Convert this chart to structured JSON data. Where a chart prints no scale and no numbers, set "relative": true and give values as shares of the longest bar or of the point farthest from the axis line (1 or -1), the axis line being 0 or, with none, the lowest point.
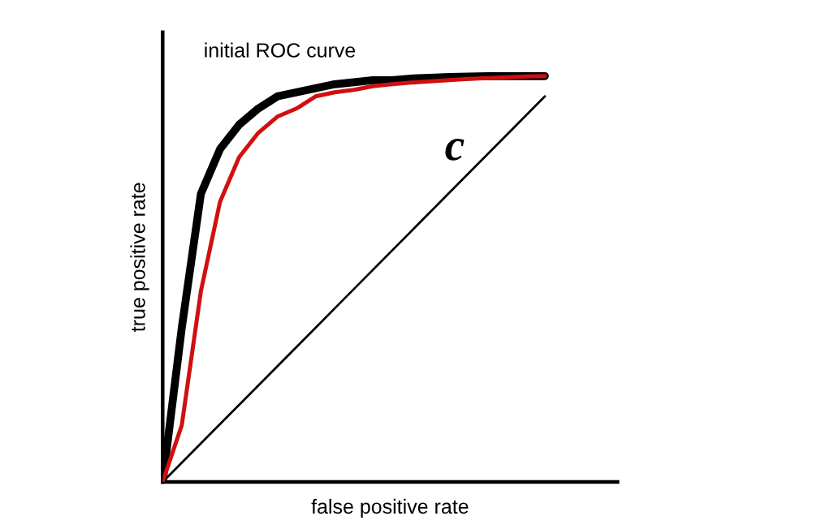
{
  "chart_data": {
    "type": "line",
    "relative": true,
    "xlabel": "false positive rate",
    "ylabel": "true positive rate",
    "marker": "none",
    "line_style": "solid",
    "categories": [
      null,
      null,
      null,
      null,
      null,
      null,
      null,
      null,
      null,
      null,
      null,
      null,
      null,
      null,
      null,
      null,
      null,
      null,
      null,
      null,
      null
    ],
    "series": [
      {
        "color": "#000000",
        "values": [
          0,
          0.38,
          0.71,
          0.82,
          0.88,
          0.92,
          0.95,
          0.96,
          0.97,
          0.98,
          0.985,
          0.99,
          0.99,
          0.994,
          0.996,
          0.998,
          0.999,
          1,
          1,
          1,
          1
        ]
      },
      {
        "color": "#d01010",
        "values": [
          0,
          0.14,
          0.47,
          0.69,
          0.8,
          0.86,
          0.9,
          0.92,
          0.95,
          0.96,
          0.966,
          0.975,
          0.98,
          0.984,
          0.987,
          0.99,
          0.993,
          0.995,
          0.997,
          0.999,
          1
        ]
      },
      {
        "color": "#000000",
        "values": [
          0,
          0.0475,
          0.095,
          0.1425,
          0.19,
          0.2375,
          0.285,
          0.3325,
          0.38,
          0.4275,
          0.475,
          0.5225,
          0.57,
          0.6175,
          0.665,
          0.7125,
          0.76,
          0.8075,
          0.855,
          0.9025,
          0.95
        ]
      }
    ],
    "annotations": [
      "initial ROC curve",
      "c"
    ]
  }
}
